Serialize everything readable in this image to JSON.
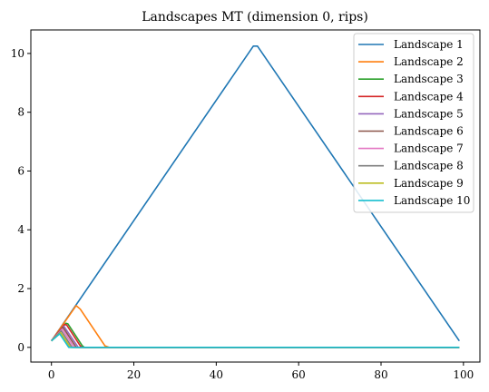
{
  "chart_data": {
    "type": "line",
    "title": "Landscapes MT (dimension 0, rips)",
    "xlabel": "",
    "ylabel": "",
    "xlim": [
      -5,
      104
    ],
    "ylim": [
      -0.5,
      10.8
    ],
    "xticks": [
      0,
      20,
      40,
      60,
      80,
      100
    ],
    "yticks": [
      0,
      2,
      4,
      6,
      8,
      10
    ],
    "grid": false,
    "legend_position": "top-right",
    "series": [
      {
        "name": "Landscape 1",
        "color": "#1f77b4",
        "points": [
          [
            0,
            0.22
          ],
          [
            49,
            10.25
          ],
          [
            50,
            10.25
          ],
          [
            99,
            0.22
          ]
        ]
      },
      {
        "name": "Landscape 2",
        "color": "#ff7f0e",
        "points": [
          [
            0,
            0.22
          ],
          [
            6,
            1.42
          ],
          [
            7,
            1.3
          ],
          [
            13,
            0.05
          ],
          [
            14,
            0.0
          ],
          [
            99,
            0.0
          ]
        ]
      },
      {
        "name": "Landscape 3",
        "color": "#2ca02c",
        "points": [
          [
            0,
            0.22
          ],
          [
            3.5,
            0.82
          ],
          [
            4,
            0.8
          ],
          [
            7.5,
            0.05
          ],
          [
            8,
            0.0
          ],
          [
            99,
            0.0
          ]
        ]
      },
      {
        "name": "Landscape 4",
        "color": "#d62728",
        "points": [
          [
            0,
            0.22
          ],
          [
            3.2,
            0.78
          ],
          [
            3.7,
            0.76
          ],
          [
            7,
            0.05
          ],
          [
            7.5,
            0.0
          ],
          [
            99,
            0.0
          ]
        ]
      },
      {
        "name": "Landscape 5",
        "color": "#9467bd",
        "points": [
          [
            0,
            0.22
          ],
          [
            3,
            0.72
          ],
          [
            6.5,
            0.0
          ],
          [
            99,
            0.0
          ]
        ]
      },
      {
        "name": "Landscape 6",
        "color": "#8c564b",
        "points": [
          [
            0,
            0.22
          ],
          [
            2.8,
            0.68
          ],
          [
            6,
            0.0
          ],
          [
            99,
            0.0
          ]
        ]
      },
      {
        "name": "Landscape 7",
        "color": "#e377c2",
        "points": [
          [
            0,
            0.22
          ],
          [
            2.6,
            0.62
          ],
          [
            5.5,
            0.0
          ],
          [
            99,
            0.0
          ]
        ]
      },
      {
        "name": "Landscape 8",
        "color": "#7f7f7f",
        "points": [
          [
            0,
            0.22
          ],
          [
            2.4,
            0.56
          ],
          [
            5,
            0.0
          ],
          [
            99,
            0.0
          ]
        ]
      },
      {
        "name": "Landscape 9",
        "color": "#bcbd22",
        "points": [
          [
            0,
            0.22
          ],
          [
            2.2,
            0.5
          ],
          [
            4.6,
            0.0
          ],
          [
            99,
            0.0
          ]
        ]
      },
      {
        "name": "Landscape 10",
        "color": "#17becf",
        "points": [
          [
            0,
            0.22
          ],
          [
            2,
            0.46
          ],
          [
            4.2,
            0.0
          ],
          [
            99,
            0.0
          ]
        ]
      }
    ]
  }
}
